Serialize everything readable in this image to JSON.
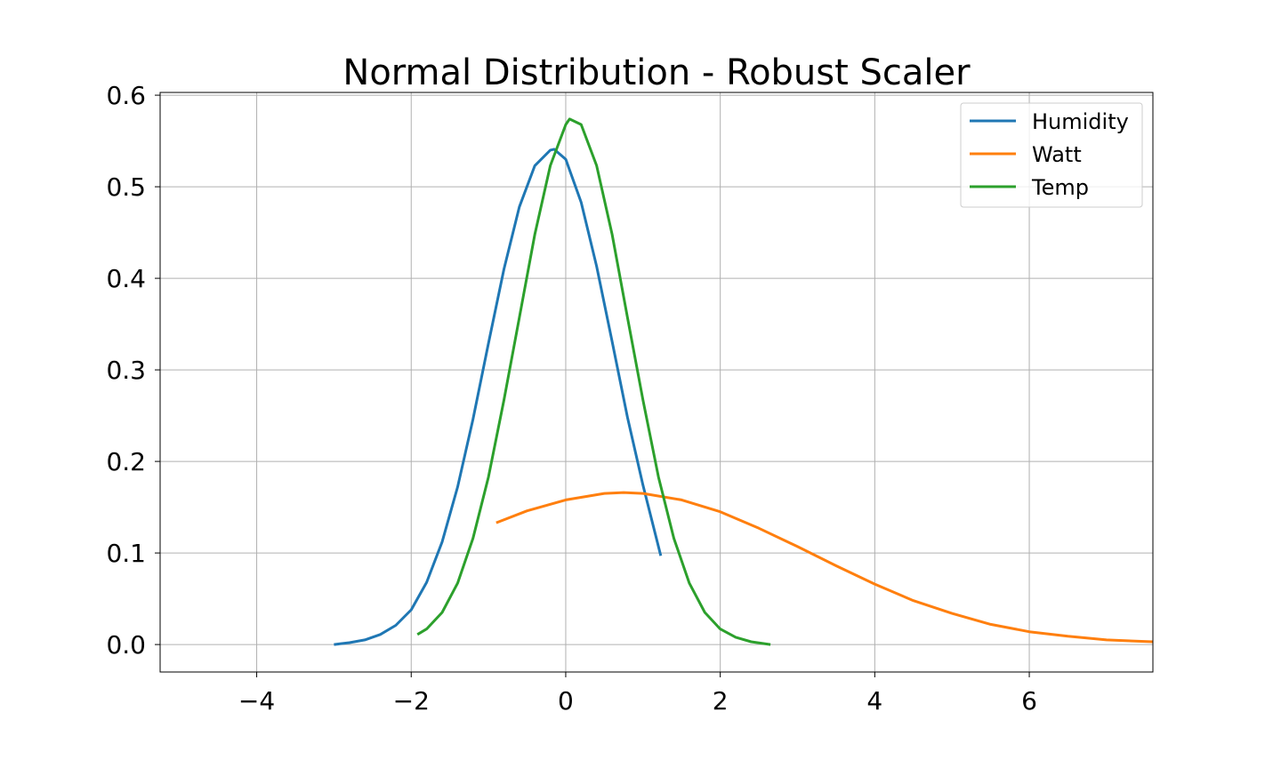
{
  "chart_data": {
    "type": "line",
    "title": "Normal Distribution - Robust Scaler",
    "xlabel": "",
    "ylabel": "",
    "xlim": [
      -5.25,
      7.6
    ],
    "ylim": [
      -0.03,
      0.603
    ],
    "x_ticks": [
      -4,
      -2,
      0,
      2,
      4,
      6
    ],
    "x_tick_labels": [
      "−4",
      "−2",
      "0",
      "2",
      "4",
      "6"
    ],
    "y_ticks": [
      0.0,
      0.1,
      0.2,
      0.3,
      0.4,
      0.5,
      0.6
    ],
    "y_tick_labels": [
      "0.0",
      "0.1",
      "0.2",
      "0.3",
      "0.4",
      "0.5",
      "0.6"
    ],
    "grid": true,
    "legend_position": "top-right",
    "series": [
      {
        "name": "Humidity",
        "color": "#1f77b4",
        "x": [
          -3.0,
          -2.8,
          -2.6,
          -2.4,
          -2.2,
          -2.0,
          -1.8,
          -1.6,
          -1.4,
          -1.2,
          -1.0,
          -0.8,
          -0.6,
          -0.4,
          -0.2,
          -0.15,
          0.0,
          0.2,
          0.4,
          0.6,
          0.8,
          1.0,
          1.23
        ],
        "y": [
          0.0,
          0.002,
          0.005,
          0.011,
          0.021,
          0.038,
          0.068,
          0.112,
          0.172,
          0.246,
          0.329,
          0.41,
          0.478,
          0.523,
          0.54,
          0.541,
          0.53,
          0.483,
          0.413,
          0.331,
          0.248,
          0.174,
          0.097
        ]
      },
      {
        "name": "Watt",
        "color": "#ff7f0e",
        "x": [
          -0.9,
          -0.5,
          0.0,
          0.5,
          0.75,
          1.0,
          1.5,
          2.0,
          2.5,
          3.0,
          3.5,
          4.0,
          4.5,
          5.0,
          5.5,
          6.0,
          6.5,
          7.0,
          7.6
        ],
        "y": [
          0.133,
          0.146,
          0.158,
          0.165,
          0.166,
          0.165,
          0.158,
          0.145,
          0.127,
          0.107,
          0.086,
          0.066,
          0.048,
          0.034,
          0.022,
          0.014,
          0.009,
          0.005,
          0.003
        ]
      },
      {
        "name": "Temp",
        "color": "#2ca02c",
        "x": [
          -1.92,
          -1.8,
          -1.6,
          -1.4,
          -1.2,
          -1.0,
          -0.8,
          -0.6,
          -0.4,
          -0.2,
          0.0,
          0.05,
          0.2,
          0.4,
          0.6,
          0.8,
          1.0,
          1.2,
          1.4,
          1.6,
          1.8,
          2.0,
          2.2,
          2.4,
          2.65
        ],
        "y": [
          0.011,
          0.017,
          0.035,
          0.067,
          0.116,
          0.183,
          0.267,
          0.357,
          0.448,
          0.523,
          0.568,
          0.574,
          0.568,
          0.523,
          0.448,
          0.357,
          0.267,
          0.183,
          0.116,
          0.067,
          0.035,
          0.017,
          0.008,
          0.003,
          0.0
        ]
      }
    ]
  }
}
